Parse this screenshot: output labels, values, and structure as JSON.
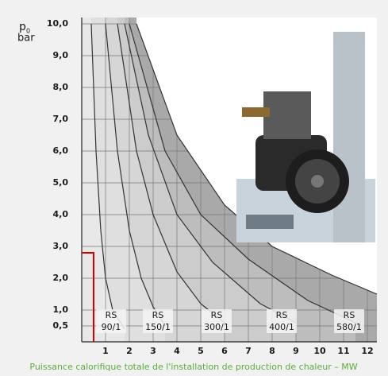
{
  "chart_data": {
    "type": "line",
    "y_label": "p",
    "y_label_sub": "0",
    "y_unit": "bar",
    "x_label": "Puissance calorifique totale de l'installation de production de chaleur – MW",
    "xlim": [
      0,
      12.4
    ],
    "ylim": [
      0,
      10.2
    ],
    "xticks": [
      1,
      2,
      3,
      4,
      5,
      6,
      7,
      8,
      9,
      10,
      11,
      12
    ],
    "yticks": [
      {
        "value": 0.5,
        "label": "0,5"
      },
      {
        "value": 1,
        "label": "1,0"
      },
      {
        "value": 2,
        "label": "2,0"
      },
      {
        "value": 3,
        "label": "3,0"
      },
      {
        "value": 4,
        "label": "4,0"
      },
      {
        "value": 5,
        "label": "5,0"
      },
      {
        "value": 6,
        "label": "6,0"
      },
      {
        "value": 7,
        "label": "7,0"
      },
      {
        "value": 8,
        "label": "8,0"
      },
      {
        "value": 9,
        "label": "9,0"
      },
      {
        "value": 10,
        "label": "10,0"
      }
    ],
    "grid": true,
    "series": [
      {
        "color": "#a9a9a9",
        "x": [
          2.3,
          4.0,
          6.0,
          8.0,
          10.5,
          12.4
        ],
        "y": [
          10,
          6.5,
          4.3,
          3.0,
          2.1,
          1.5
        ]
      },
      {
        "color": "#bdbdbd",
        "x": [
          2.0,
          3.5,
          5.0,
          7.0,
          9.5,
          11.5
        ],
        "y": [
          10,
          6,
          4,
          2.6,
          1.3,
          0.6
        ]
      },
      {
        "color": "#cccccc",
        "x": [
          1.8,
          2.8,
          4.0,
          5.5,
          7.5,
          9.0
        ],
        "y": [
          10,
          6.5,
          4,
          2.5,
          1.2,
          0.6
        ]
      },
      {
        "color": "#d6d6d6",
        "x": [
          1.5,
          2.3,
          3.0,
          4.0,
          5.0,
          6.0
        ],
        "y": [
          10,
          6,
          4,
          2.2,
          1.2,
          0.6
        ]
      },
      {
        "color": "#dfdfdf",
        "x": [
          1.0,
          1.5,
          2.0,
          2.5,
          3.0,
          3.5
        ],
        "y": [
          10,
          6,
          3.5,
          2,
          1.1,
          0.5
        ]
      },
      {
        "color": "#e8e8e8",
        "x": [
          0.4,
          0.6,
          0.8,
          1.0,
          1.3,
          1.8
        ],
        "y": [
          10,
          6,
          3.5,
          2,
          1,
          0.4
        ]
      }
    ],
    "annotations": [
      [
        "RS",
        "90/1"
      ],
      [
        "RS",
        "150/1"
      ],
      [
        "RS",
        "300/1"
      ],
      [
        "RS",
        "400/1"
      ],
      [
        "RS",
        "580/1"
      ]
    ],
    "marker": {
      "x": 0.5,
      "y": 2.8,
      "color": "#d40000"
    }
  }
}
